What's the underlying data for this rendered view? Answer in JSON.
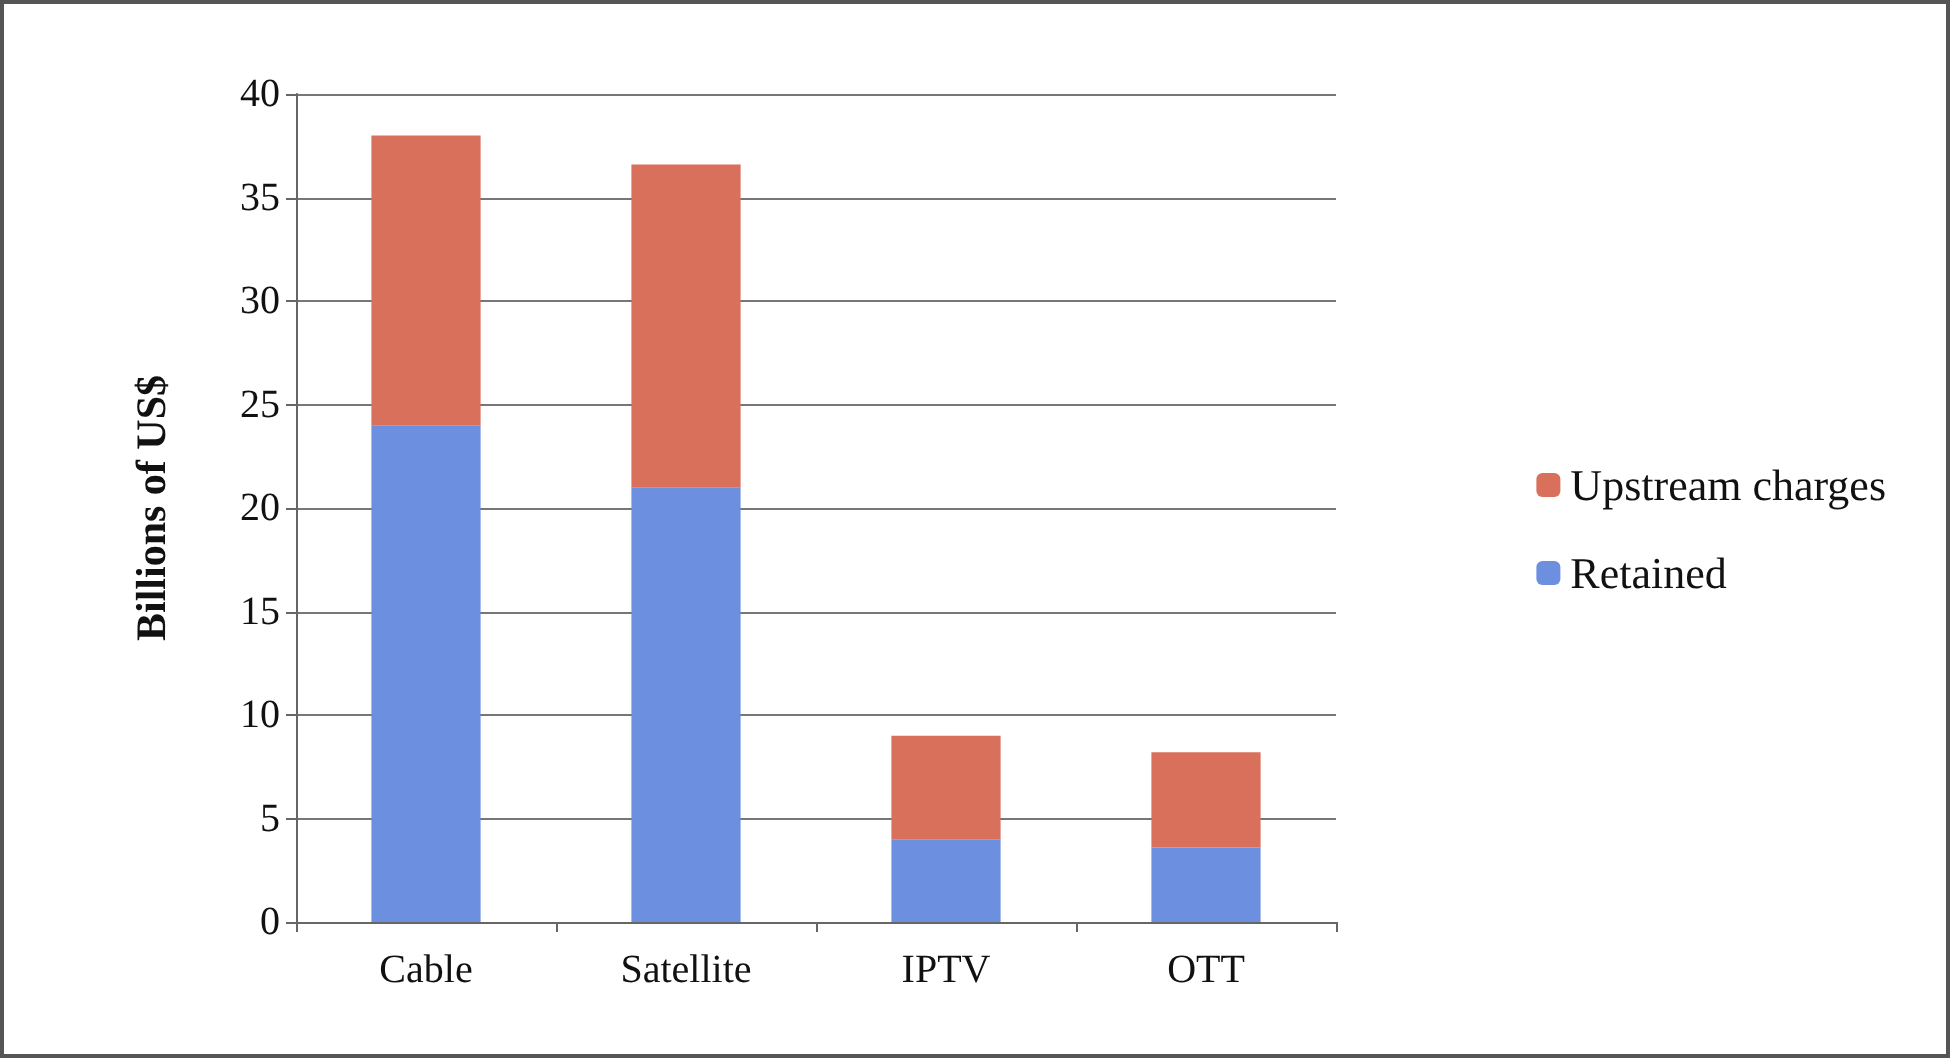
{
  "chart_data": {
    "type": "bar",
    "stacked": true,
    "ylabel": "Billions of US$",
    "categories": [
      "Cable",
      "Satellite",
      "IPTV",
      "OTT"
    ],
    "series": [
      {
        "name": "Retained",
        "color": "#6d8fe0",
        "values": [
          24,
          21,
          4,
          3.6
        ]
      },
      {
        "name": "Upstream charges",
        "color": "#d8705c",
        "values": [
          14,
          15.6,
          5,
          4.6
        ]
      }
    ],
    "ylim": [
      0,
      40
    ],
    "yticks": [
      0,
      5,
      10,
      15,
      20,
      25,
      30,
      35,
      40
    ],
    "grid": "y",
    "legend": "right"
  }
}
